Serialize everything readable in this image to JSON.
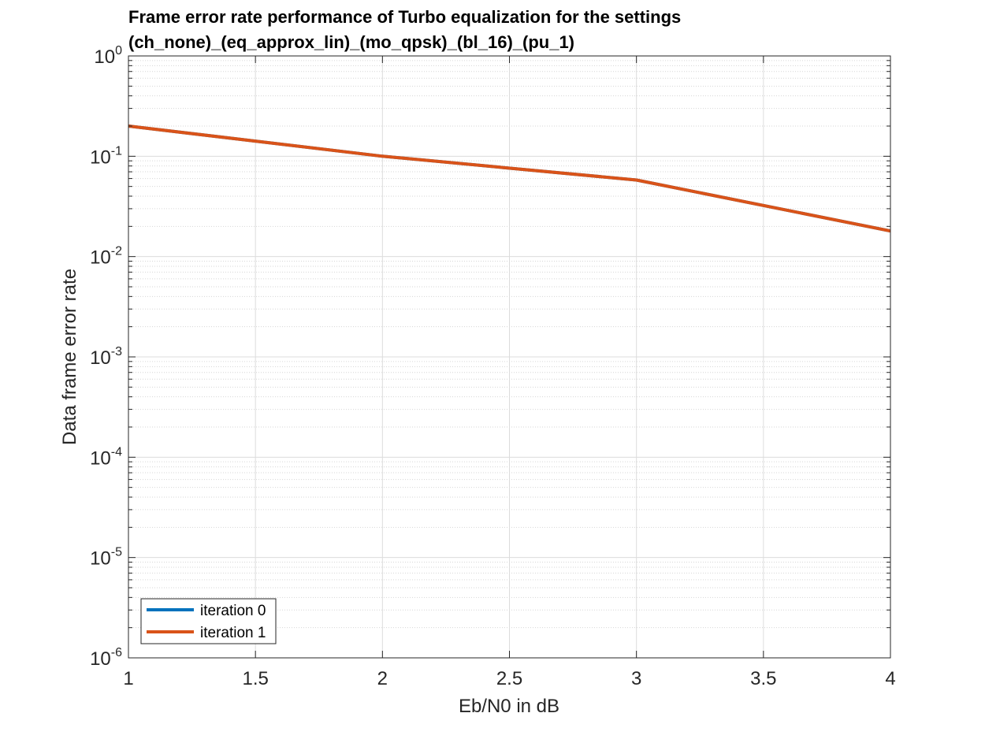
{
  "chart_data": {
    "type": "line",
    "title": [
      "Frame error rate performance of Turbo equalization for the settings",
      "(ch_none)_(eq_approx_lin)_(mo_qpsk)_(bl_16)_(pu_1)"
    ],
    "xlabel": "Eb/N0 in dB",
    "ylabel": "Data frame error rate",
    "xlim": [
      1,
      4
    ],
    "ylim": [
      1e-06,
      1
    ],
    "yscale": "log",
    "grid": true,
    "minor_grid": true,
    "x_ticks": [
      1,
      1.5,
      2,
      2.5,
      3,
      3.5,
      4
    ],
    "x_tick_labels": [
      "1",
      "1.5",
      "2",
      "2.5",
      "3",
      "3.5",
      "4"
    ],
    "y_ticks": [
      {
        "value": 1,
        "base": "10",
        "exp": "0"
      },
      {
        "value": 0.1,
        "base": "10",
        "exp": "-1"
      },
      {
        "value": 0.01,
        "base": "10",
        "exp": "-2"
      },
      {
        "value": 0.001,
        "base": "10",
        "exp": "-3"
      },
      {
        "value": 0.0001,
        "base": "10",
        "exp": "-4"
      },
      {
        "value": 1e-05,
        "base": "10",
        "exp": "-5"
      },
      {
        "value": 1e-06,
        "base": "10",
        "exp": "-6"
      }
    ],
    "legend_location": "bottom-left",
    "series": [
      {
        "name": "iteration 0",
        "color": "#0072BD",
        "x": [
          1,
          2,
          3,
          4
        ],
        "y": [
          0.2,
          0.1,
          0.058,
          0.018
        ]
      },
      {
        "name": "iteration 1",
        "color": "#D95319",
        "x": [
          1,
          2,
          3,
          4
        ],
        "y": [
          0.2,
          0.1,
          0.058,
          0.018
        ]
      }
    ]
  }
}
